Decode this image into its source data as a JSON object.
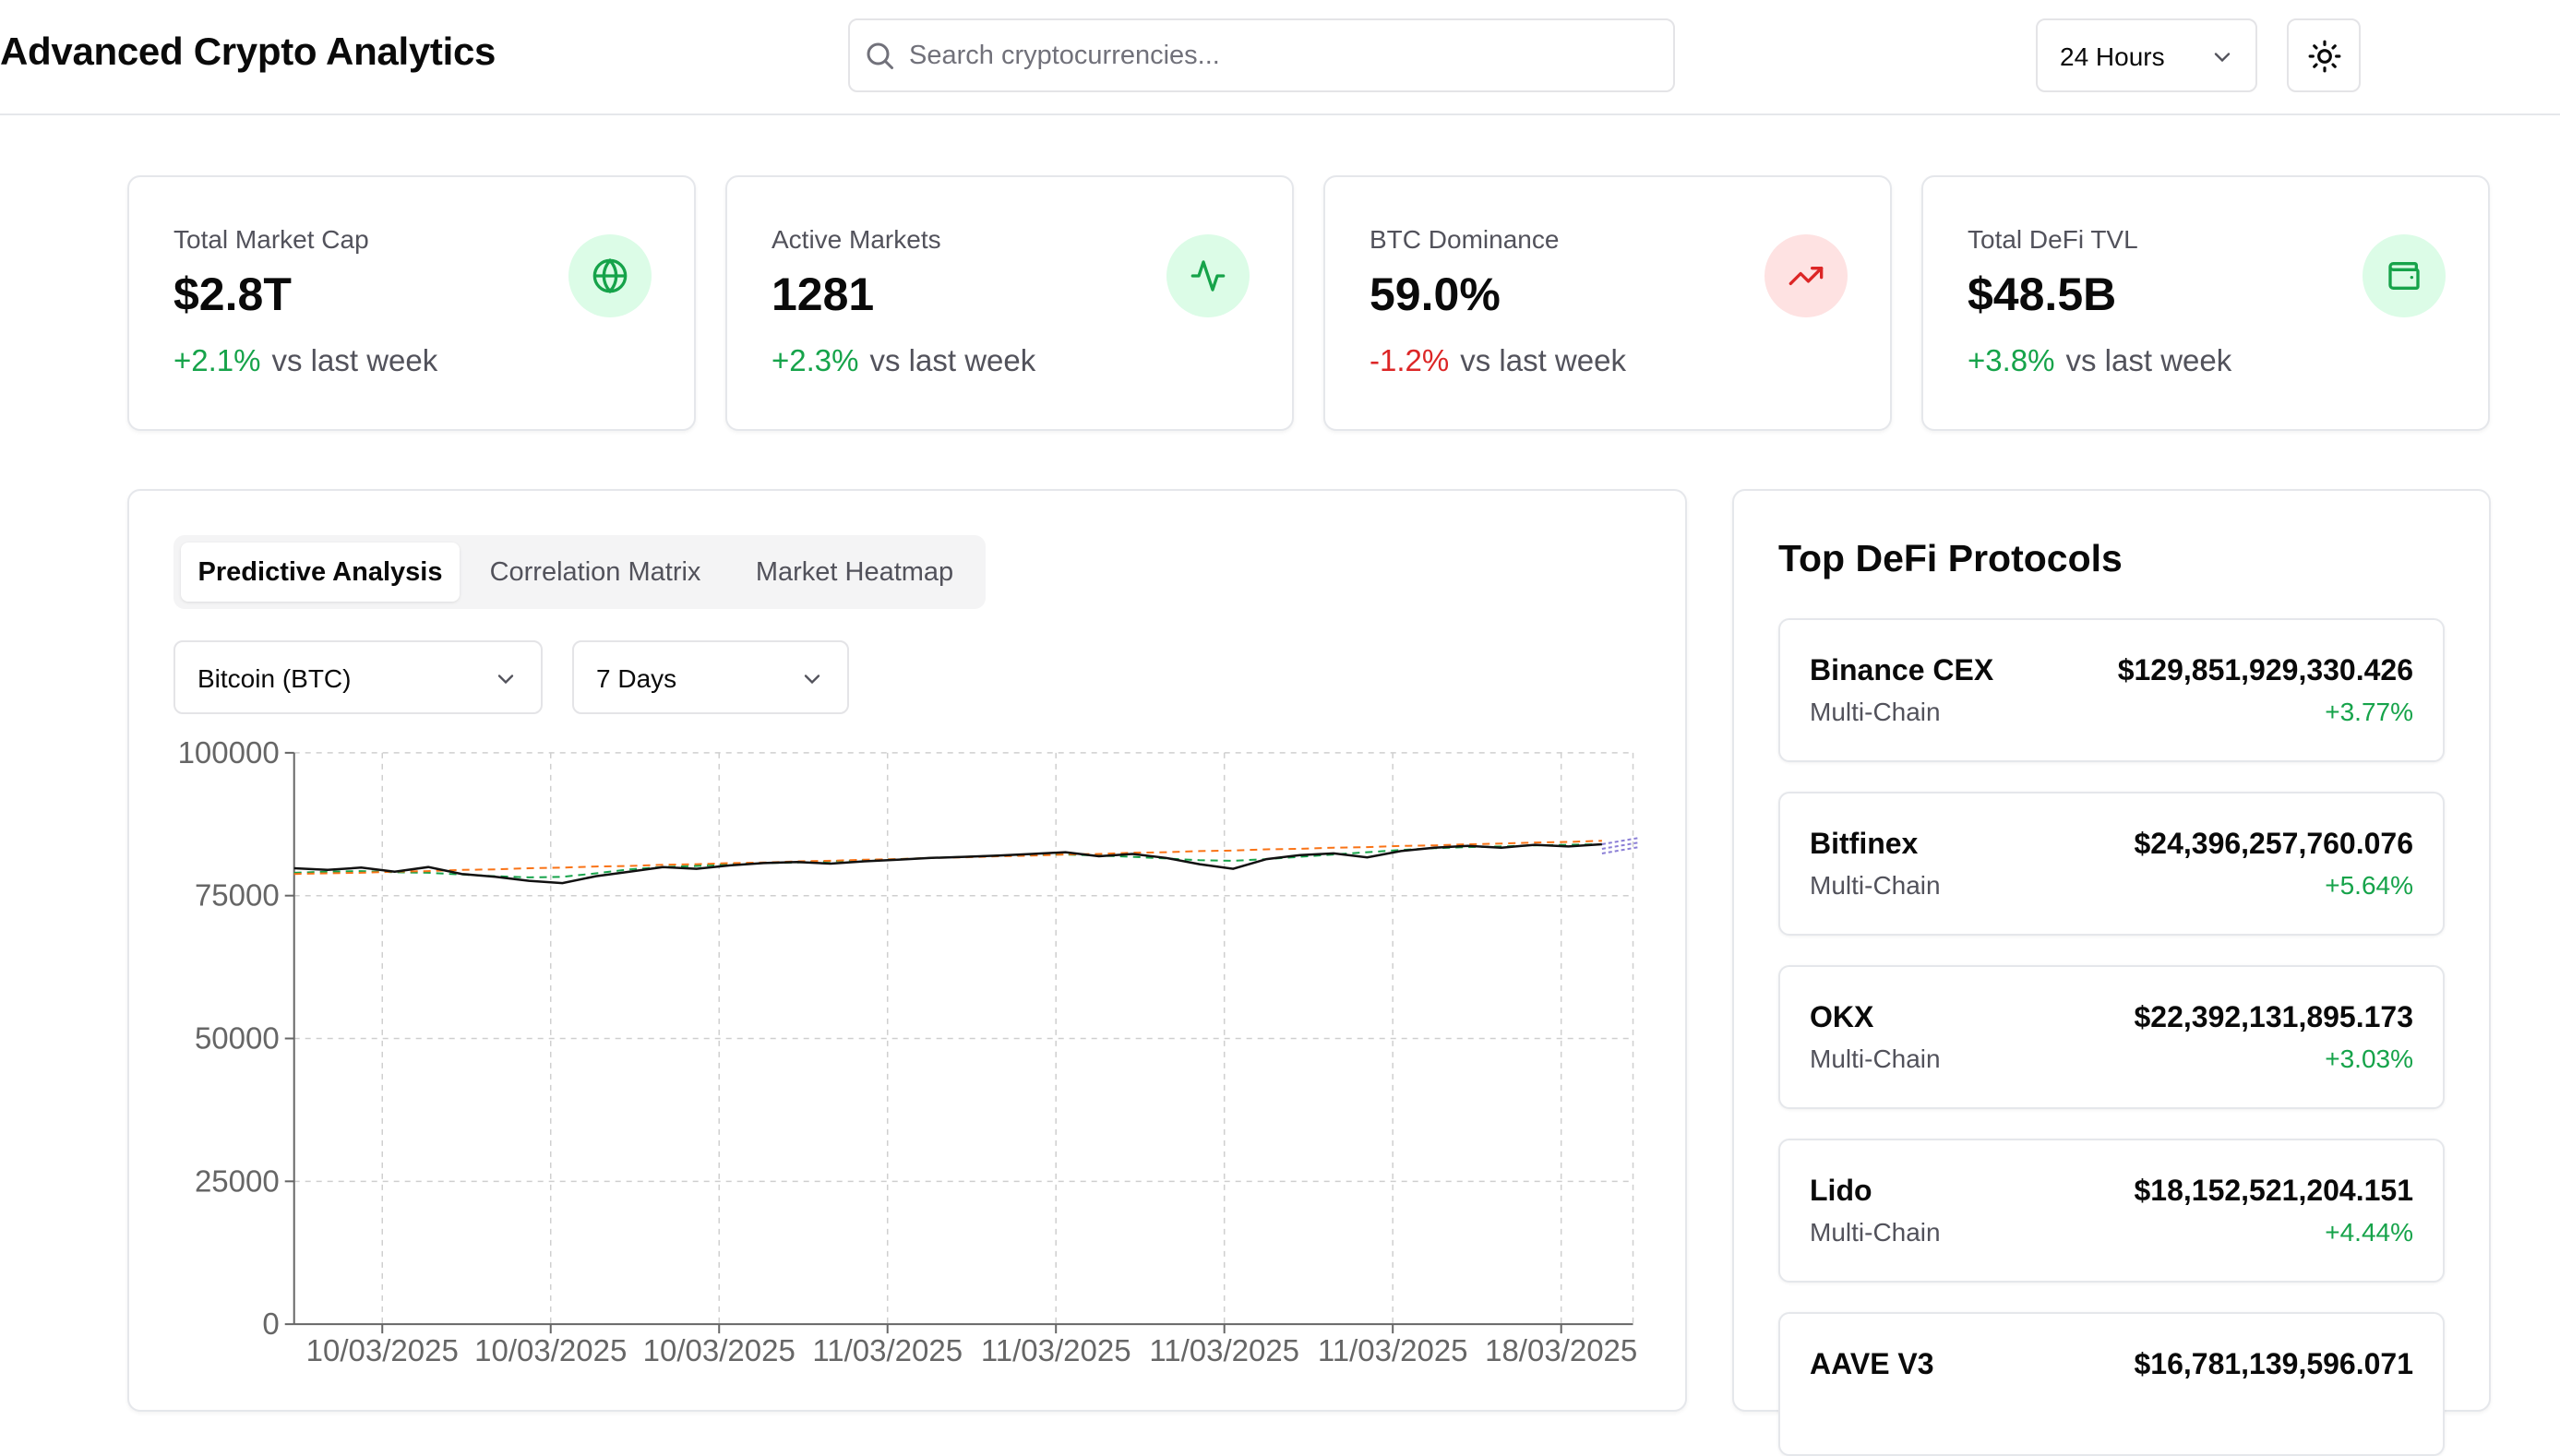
{
  "header": {
    "title": "Advanced Crypto Analytics",
    "search_placeholder": "Search cryptocurrencies...",
    "time_range": "24 Hours",
    "theme_icon": "sun-icon"
  },
  "stats": [
    {
      "title": "Total Market Cap",
      "value": "$2.8T",
      "change": "+2.1%",
      "direction": "up",
      "comparison": "vs last week",
      "icon": "globe-icon",
      "icon_color": "#16a34a"
    },
    {
      "title": "Active Markets",
      "value": "1281",
      "change": "+2.3%",
      "direction": "up",
      "comparison": "vs last week",
      "icon": "activity-icon",
      "icon_color": "#16a34a"
    },
    {
      "title": "BTC Dominance",
      "value": "59.0%",
      "change": "-1.2%",
      "direction": "down",
      "comparison": "vs last week",
      "icon": "trending-up-icon",
      "icon_color": "#dc2626"
    },
    {
      "title": "Total DeFi TVL",
      "value": "$48.5B",
      "change": "+3.8%",
      "direction": "up",
      "comparison": "vs last week",
      "icon": "wallet-icon",
      "icon_color": "#16a34a"
    }
  ],
  "analysis": {
    "tabs": [
      {
        "label": "Predictive Analysis",
        "active": true
      },
      {
        "label": "Correlation Matrix",
        "active": false
      },
      {
        "label": "Market Heatmap",
        "active": false
      }
    ],
    "asset_select": "Bitcoin (BTC)",
    "period_select": "7 Days"
  },
  "chart_data": {
    "type": "line",
    "title": "",
    "xlabel": "",
    "ylabel": "",
    "ylim": [
      0,
      100000
    ],
    "yticks": [
      0,
      25000,
      50000,
      75000,
      100000
    ],
    "xtick_labels": [
      "10/03/2025",
      "10/03/2025",
      "10/03/2025",
      "11/03/2025",
      "11/03/2025",
      "11/03/2025",
      "11/03/2025",
      "18/03/2025"
    ],
    "grid": true,
    "legend": "none",
    "series": [
      {
        "key": "price",
        "color": "#111111",
        "dashed": false,
        "values": [
          79800,
          79500,
          79900,
          79200,
          80000,
          78800,
          78300,
          77600,
          77200,
          78400,
          79200,
          80000,
          79700,
          80300,
          80700,
          80900,
          80600,
          81000,
          81300,
          81600,
          81800,
          82000,
          82300,
          82600,
          81900,
          82300,
          81600,
          80500,
          79700,
          81400,
          82100,
          82400,
          81700,
          82800,
          83400,
          83700,
          83400,
          83900,
          83600,
          84000
        ]
      },
      {
        "key": "trend",
        "color": "#f97316",
        "dashed": true,
        "values": [
          78800,
          78900,
          79000,
          79200,
          79300,
          79500,
          79600,
          79800,
          79900,
          80100,
          80200,
          80400,
          80500,
          80700,
          80800,
          81000,
          81100,
          81300,
          81400,
          81600,
          81700,
          81900,
          82000,
          82200,
          82300,
          82500,
          82600,
          82800,
          82900,
          83100,
          83200,
          83400,
          83500,
          83700,
          83800,
          84000,
          84100,
          84300,
          84400,
          84600
        ]
      },
      {
        "key": "average",
        "color": "#16a34a",
        "dashed": true,
        "values": [
          79000,
          79200,
          79300,
          79100,
          79000,
          78700,
          78400,
          78200,
          78300,
          78900,
          79600,
          80000,
          80200,
          80500,
          80700,
          80800,
          81000,
          81200,
          81400,
          81600,
          81800,
          82000,
          82100,
          82200,
          82000,
          81800,
          81500,
          81200,
          81100,
          81400,
          81800,
          82200,
          82600,
          83000,
          83300,
          83500,
          83600,
          83800,
          83900,
          84000
        ]
      }
    ],
    "forecast": {
      "color": "#8b7fd6",
      "values": [
        84000,
        85100
      ]
    }
  },
  "defi": {
    "title": "Top DeFi Protocols",
    "protocols": [
      {
        "name": "Binance CEX",
        "chain": "Multi-Chain",
        "tvl": "$129,851,929,330.426",
        "change": "+3.77%"
      },
      {
        "name": "Bitfinex",
        "chain": "Multi-Chain",
        "tvl": "$24,396,257,760.076",
        "change": "+5.64%"
      },
      {
        "name": "OKX",
        "chain": "Multi-Chain",
        "tvl": "$22,392,131,895.173",
        "change": "+3.03%"
      },
      {
        "name": "Lido",
        "chain": "Multi-Chain",
        "tvl": "$18,152,521,204.151",
        "change": "+4.44%"
      },
      {
        "name": "AAVE V3",
        "chain": "",
        "tvl": "$16,781,139,596.071",
        "change": ""
      }
    ]
  }
}
